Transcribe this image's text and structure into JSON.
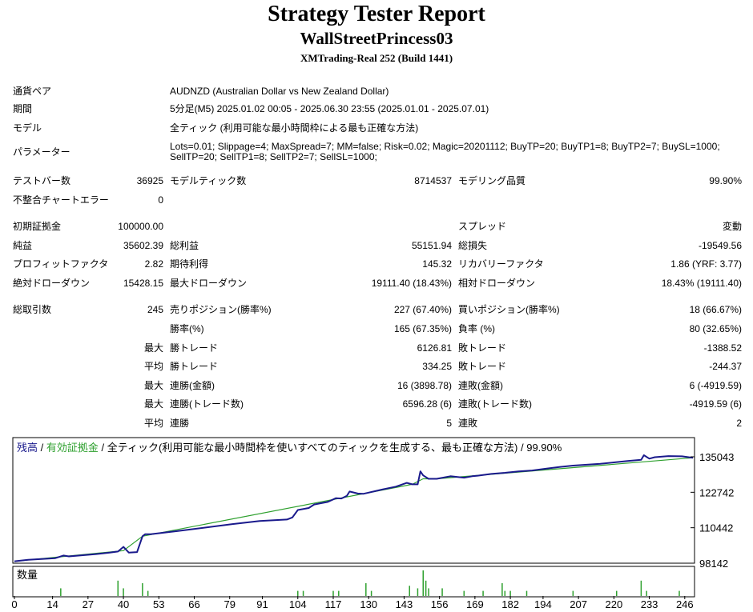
{
  "header": {
    "title": "Strategy Tester Report",
    "subtitle": "WallStreetPrincess03",
    "server": "XMTrading-Real 252 (Build 1441)"
  },
  "info": {
    "pair_label": "通貨ペア",
    "pair_value": "AUDNZD (Australian Dollar vs New Zealand Dollar)",
    "period_label": "期間",
    "period_value": "5分足(M5) 2025.01.02 00:05 - 2025.06.30 23:55 (2025.01.01 - 2025.07.01)",
    "model_label": "モデル",
    "model_value": "全ティック (利用可能な最小時間枠による最も正確な方法)",
    "params_label": "パラメーター",
    "params_value": "Lots=0.01; Slippage=4; MaxSpread=7; MM=false; Risk=0.02; Magic=20201112; BuyTP=20; BuyTP1=8; BuyTP2=7; BuySL=1000; SellTP=20; SellTP1=8; SellTP2=7; SellSL=1000;"
  },
  "bars": {
    "bars_label": "テストバー数",
    "bars_value": "36925",
    "ticks_label": "モデルティック数",
    "ticks_value": "8714537",
    "quality_label": "モデリング品質",
    "quality_value": "99.90%",
    "errors_label": "不整合チャートエラー",
    "errors_value": "0"
  },
  "stats": {
    "deposit_label": "初期証拠金",
    "deposit_value": "100000.00",
    "spread_label": "スプレッド",
    "spread_value": "変動",
    "net_label": "純益",
    "net_value": "35602.39",
    "gross_profit_label": "総利益",
    "gross_profit_value": "55151.94",
    "gross_loss_label": "総損失",
    "gross_loss_value": "-19549.56",
    "pf_label": "プロフィットファクタ",
    "pf_value": "2.82",
    "expected_label": "期待利得",
    "expected_value": "145.32",
    "recovery_label": "リカバリーファクタ",
    "recovery_value": "1.86 (YRF: 3.77)",
    "abs_dd_label": "絶対ドローダウン",
    "abs_dd_value": "15428.15",
    "max_dd_label": "最大ドローダウン",
    "max_dd_value": "19111.40 (18.43%)",
    "rel_dd_label": "相対ドローダウン",
    "rel_dd_value": "18.43% (19111.40)"
  },
  "trades": {
    "total_label": "総取引数",
    "total_value": "245",
    "short_label": "売りポジション(勝率%)",
    "short_value": "227 (67.40%)",
    "long_label": "買いポジション(勝率%)",
    "long_value": "18 (66.67%)",
    "winrate_label": "勝率(%)",
    "winrate_value": "165 (67.35%)",
    "lossrate_label": "負率 (%)",
    "lossrate_value": "80 (32.65%)",
    "max_label": "最大",
    "avg_label": "平均",
    "max_win_label": "勝トレード",
    "max_win_value": "6126.81",
    "max_loss_label": "敗トレード",
    "max_loss_value": "-1388.52",
    "avg_win_label": "勝トレード",
    "avg_win_value": "334.25",
    "avg_loss_label": "敗トレード",
    "avg_loss_value": "-244.37",
    "max2_label": "最大",
    "consec_win_amount_label": "連勝(金額)",
    "consec_win_amount_value": "16 (3898.78)",
    "consec_loss_amount_label": "連敗(金額)",
    "consec_loss_amount_value": "6 (-4919.59)",
    "max3_label": "最大",
    "consec_win_trades_label": "連勝(トレード数)",
    "consec_win_trades_value": "6596.28 (6)",
    "consec_loss_trades_label": "連敗(トレード数)",
    "consec_loss_trades_value": "-4919.59 (6)",
    "avg2_label": "平均",
    "avg_consec_win_label": "連勝",
    "avg_consec_win_value": "5",
    "avg_consec_loss_label": "連敗",
    "avg_consec_loss_value": "2"
  },
  "chart_legend": {
    "balance": "残高",
    "sep1": " / ",
    "equity": "有効証拠金",
    "sep2": " / ",
    "rest": "全ティック(利用可能な最小時間枠を使いすべてのティックを生成する、最も正確な方法) / 99.90%",
    "volume": "数量"
  },
  "colors": {
    "balance": "#1a1a8c",
    "equity": "#2ea02e",
    "volume": "#2ea02e"
  },
  "chart_data": {
    "type": "line",
    "x_ticks": [
      "0",
      "14",
      "27",
      "40",
      "53",
      "66",
      "79",
      "91",
      "104",
      "117",
      "130",
      "143",
      "156",
      "169",
      "182",
      "194",
      "207",
      "220",
      "233",
      "246"
    ],
    "y_ticks": [
      "135043",
      "122742",
      "110442",
      "98142"
    ],
    "ylim": [
      98142,
      135043
    ],
    "xlim": [
      0,
      249
    ],
    "series": [
      {
        "name": "残高",
        "x": [
          0,
          5,
          10,
          15,
          18,
          20,
          30,
          35,
          38,
          40,
          42,
          45,
          47,
          48,
          50,
          60,
          80,
          90,
          100,
          102,
          104,
          108,
          110,
          115,
          118,
          120,
          122,
          123,
          126,
          128,
          135,
          140,
          144,
          146,
          148,
          149,
          150,
          152,
          155,
          160,
          165,
          168,
          170,
          175,
          180,
          185,
          190,
          195,
          200,
          205,
          210,
          215,
          220,
          225,
          230,
          231,
          233,
          235,
          240,
          245,
          249
        ],
        "y": [
          98800,
          99300,
          99600,
          99900,
          100800,
          100500,
          101300,
          101800,
          102200,
          103800,
          101800,
          102000,
          107500,
          108200,
          108200,
          109300,
          111700,
          112800,
          113300,
          114000,
          116600,
          117300,
          118500,
          119400,
          120700,
          120600,
          121500,
          123000,
          122300,
          122200,
          123700,
          124700,
          126000,
          125500,
          125500,
          130000,
          128600,
          127400,
          127400,
          128300,
          127800,
          128300,
          128500,
          129100,
          129500,
          130000,
          130300,
          130900,
          131500,
          132000,
          132300,
          132600,
          133100,
          133600,
          134000,
          135600,
          134400,
          134900,
          135300,
          135200,
          134700
        ]
      },
      {
        "name": "有効証拠金",
        "x": [
          0,
          40,
          47,
          146,
          150,
          155,
          249
        ],
        "y": [
          98800,
          102500,
          107500,
          125500,
          127400,
          127400,
          134700
        ]
      }
    ],
    "volume": {
      "label": "数量",
      "x": [
        17,
        38,
        40,
        47,
        49,
        104,
        106,
        117,
        119,
        129,
        131,
        145,
        148,
        150,
        151,
        152,
        157,
        165,
        172,
        179,
        180,
        182,
        188,
        205,
        221,
        230,
        232,
        244
      ],
      "v": [
        3,
        6,
        3,
        5,
        2,
        2,
        2,
        2,
        2,
        5,
        2,
        4,
        3,
        10,
        6,
        3,
        3,
        2,
        2,
        5,
        2,
        2,
        2,
        2,
        2,
        6,
        2,
        2
      ]
    }
  }
}
